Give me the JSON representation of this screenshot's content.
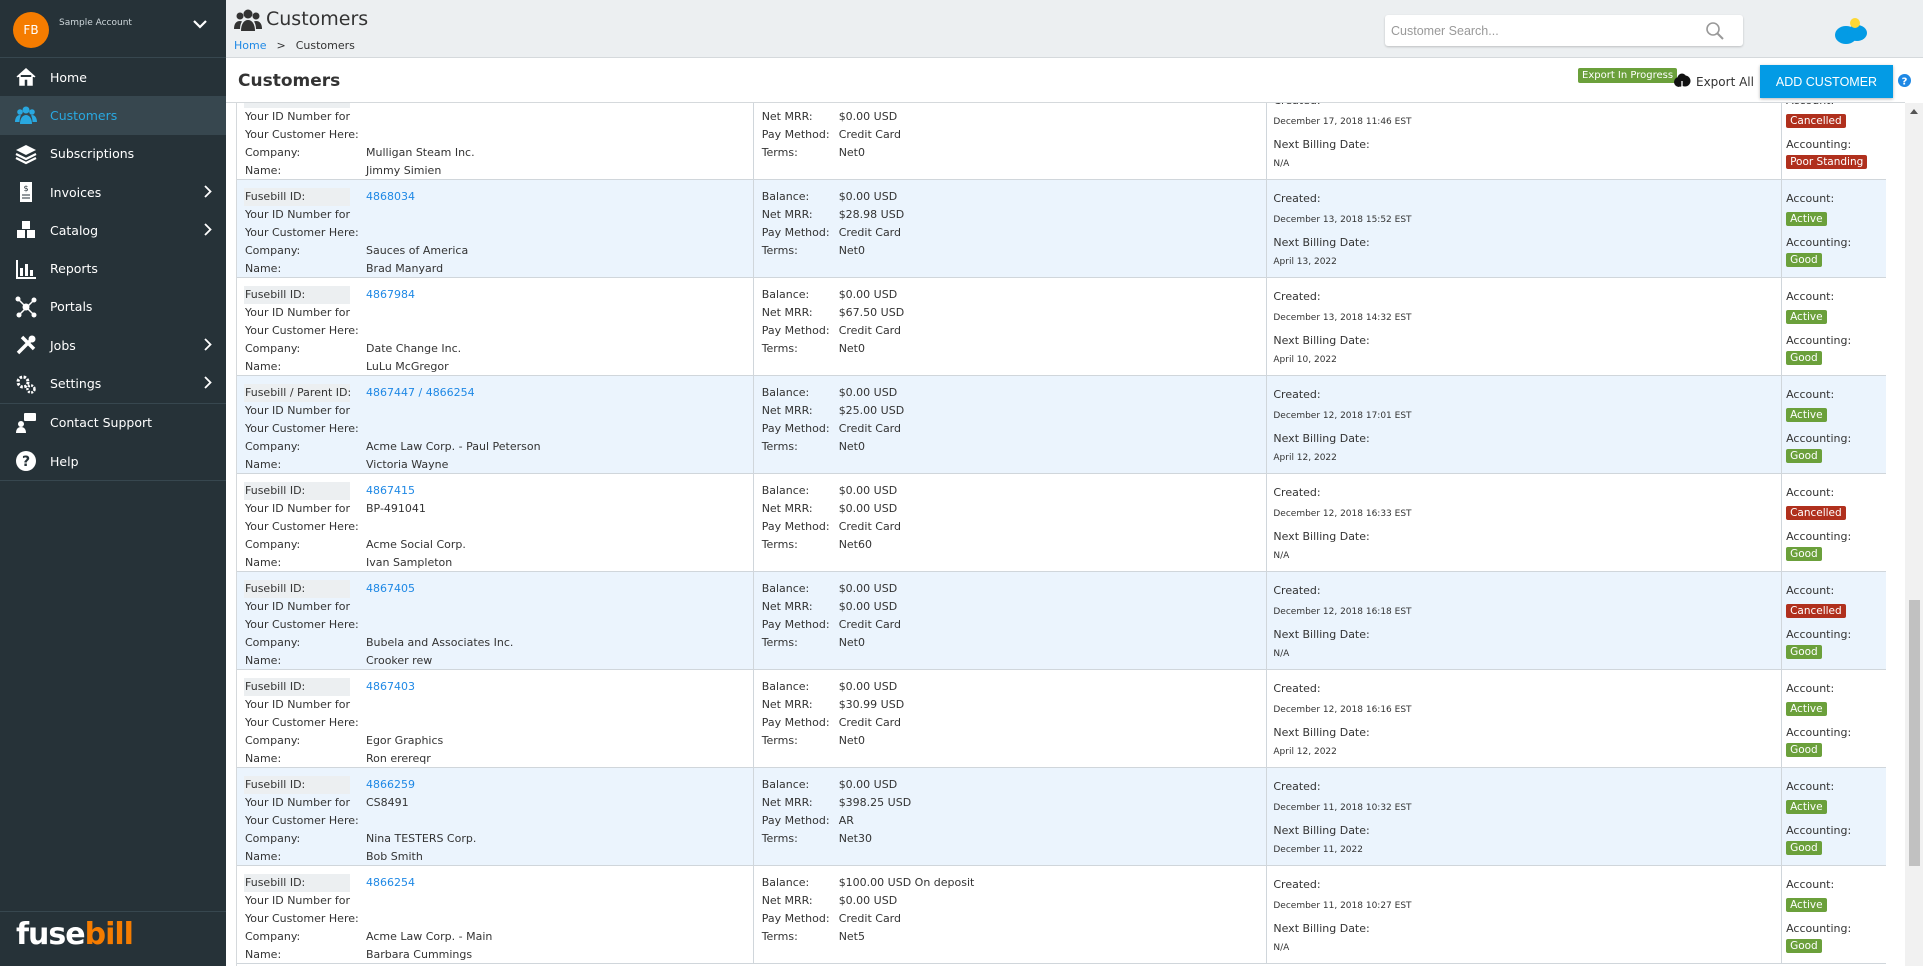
{
  "account": {
    "initials": "FB",
    "name": "Sample Account"
  },
  "sidebar": {
    "items": [
      {
        "label": "Home",
        "icon": "home-icon"
      },
      {
        "label": "Customers",
        "icon": "users-icon",
        "active": true
      },
      {
        "label": "Subscriptions",
        "icon": "layers-icon"
      },
      {
        "label": "Invoices",
        "icon": "invoice-icon",
        "chevron": true
      },
      {
        "label": "Catalog",
        "icon": "cubes-icon",
        "chevron": true
      },
      {
        "label": "Reports",
        "icon": "bar-chart-icon"
      },
      {
        "label": "Portals",
        "icon": "network-icon"
      },
      {
        "label": "Jobs",
        "icon": "tools-icon",
        "chevron": true
      },
      {
        "label": "Settings",
        "icon": "gears-icon",
        "chevron": true
      },
      {
        "label": "Contact Support",
        "icon": "support-icon"
      },
      {
        "label": "Help",
        "icon": "question-icon"
      }
    ],
    "logo": "fusebill"
  },
  "header": {
    "title": "Customers",
    "breadcrumb": {
      "home": "Home",
      "sep": ">",
      "current": "Customers"
    },
    "search_placeholder": "Customer Search..."
  },
  "toolbar": {
    "title": "Customers",
    "export_badge": "Export In Progress",
    "export_all": "Export All",
    "add_customer": "ADD CUSTOMER"
  },
  "labels": {
    "fusebill_id": "Fusebill ID:",
    "parent_id": "Fusebill / Parent ID:",
    "your_id_1": "Your ID Number for",
    "your_id_2": "Your Customer Here:",
    "company": "Company:",
    "name": "Name:",
    "balance": "Balance:",
    "net_mrr": "Net MRR:",
    "pay_method": "Pay Method:",
    "terms": "Terms:",
    "created": "Created:",
    "next_billing": "Next Billing Date:",
    "account": "Account:",
    "accounting": "Accounting:"
  },
  "colors": {
    "accent": "#039be5",
    "active": "#6ba03b",
    "cancelled": "#b0301d",
    "sidebar": "#263238"
  },
  "customers": [
    {
      "id": "",
      "your_id": "",
      "company": "Mulligan Steam Inc.",
      "name": "Jimmy Simien",
      "balance": "",
      "net_mrr": "$0.00 USD",
      "pay_method": "Credit Card",
      "terms": "Net0",
      "created": "December 17, 2018 11:46 EST",
      "next_billing": "N/A",
      "account": "Cancelled",
      "accounting": "Poor Standing"
    },
    {
      "id": "4868034",
      "your_id": "",
      "company": "Sauces of America",
      "name": "Brad Manyard",
      "balance": "$0.00 USD",
      "net_mrr": "$28.98 USD",
      "pay_method": "Credit Card",
      "terms": "Net0",
      "created": "December 13, 2018 15:52 EST",
      "next_billing": "April 13, 2022",
      "account": "Active",
      "accounting": "Good"
    },
    {
      "id": "4867984",
      "your_id": "",
      "company": "Date Change Inc.",
      "name": "LuLu McGregor",
      "balance": "$0.00 USD",
      "net_mrr": "$67.50 USD",
      "pay_method": "Credit Card",
      "terms": "Net0",
      "created": "December 13, 2018 14:32 EST",
      "next_billing": "April 10, 2022",
      "account": "Active",
      "accounting": "Good"
    },
    {
      "id": "4867447 / 4866254",
      "parent": true,
      "your_id": "",
      "company": "Acme Law Corp. - Paul Peterson",
      "name": "Victoria Wayne",
      "balance": "$0.00 USD",
      "net_mrr": "$25.00 USD",
      "pay_method": "Credit Card",
      "terms": "Net0",
      "created": "December 12, 2018 17:01 EST",
      "next_billing": "April 12, 2022",
      "account": "Active",
      "accounting": "Good"
    },
    {
      "id": "4867415",
      "your_id": "BP-491041",
      "company": "Acme Social Corp.",
      "name": "Ivan Sampleton",
      "balance": "$0.00 USD",
      "net_mrr": "$0.00 USD",
      "pay_method": "Credit Card",
      "terms": "Net60",
      "created": "December 12, 2018 16:33 EST",
      "next_billing": "N/A",
      "account": "Cancelled",
      "accounting": "Good"
    },
    {
      "id": "4867405",
      "your_id": "",
      "company": "Bubela and Associates Inc.",
      "name": "Crooker rew",
      "balance": "$0.00 USD",
      "net_mrr": "$0.00 USD",
      "pay_method": "Credit Card",
      "terms": "Net0",
      "created": "December 12, 2018 16:18 EST",
      "next_billing": "N/A",
      "account": "Cancelled",
      "accounting": "Good"
    },
    {
      "id": "4867403",
      "your_id": "",
      "company": "Egor Graphics",
      "name": "Ron erereqr",
      "balance": "$0.00 USD",
      "net_mrr": "$30.99 USD",
      "pay_method": "Credit Card",
      "terms": "Net0",
      "created": "December 12, 2018 16:16 EST",
      "next_billing": "April 12, 2022",
      "account": "Active",
      "accounting": "Good"
    },
    {
      "id": "4866259",
      "your_id": "CS8491",
      "company": "Nina TESTERS Corp.",
      "name": "Bob Smith",
      "balance": "$0.00 USD",
      "net_mrr": "$398.25 USD",
      "pay_method": "AR",
      "terms": "Net30",
      "created": "December 11, 2018 10:32 EST",
      "next_billing": "December 11, 2022",
      "account": "Active",
      "accounting": "Good"
    },
    {
      "id": "4866254",
      "your_id": "",
      "company": "Acme Law Corp. - Main",
      "name": "Barbara Cummings",
      "balance": "$100.00 USD On deposit",
      "net_mrr": "$0.00 USD",
      "pay_method": "Credit Card",
      "terms": "Net5",
      "created": "December 11, 2018 10:27 EST",
      "next_billing": "N/A",
      "account": "Active",
      "accounting": "Good"
    }
  ]
}
